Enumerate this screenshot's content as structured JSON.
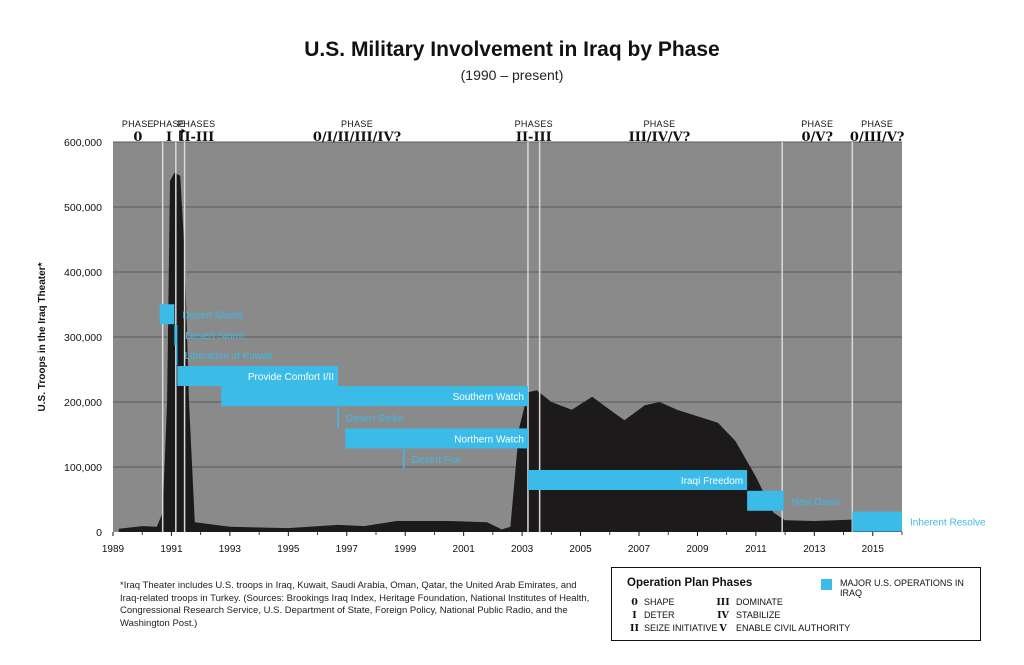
{
  "title": "U.S. Military Involvement in Iraq by Phase",
  "subtitle": "(1990 – present)",
  "colors": {
    "background": "#8a8a8a",
    "area": "#1c1a1a",
    "operation": "#3bbbe8",
    "divider": "#d9d9d9"
  },
  "chart_data": {
    "type": "area",
    "title": "U.S. Military Involvement in Iraq by Phase",
    "ylabel": "U.S. Troops in the Iraq Theater*",
    "xlabel": "",
    "xlim": [
      1989,
      2016
    ],
    "ylim": [
      0,
      600000
    ],
    "x_ticks": [
      "1989",
      "1991",
      "1993",
      "1995",
      "1997",
      "1999",
      "2001",
      "2003",
      "2005",
      "2007",
      "2009",
      "2011",
      "2013",
      "2015"
    ],
    "y_ticks": [
      {
        "value": 0,
        "label": "0"
      },
      {
        "value": 100000,
        "label": "100,000"
      },
      {
        "value": 200000,
        "label": "200,000"
      },
      {
        "value": 300000,
        "label": "300,000"
      },
      {
        "value": 400000,
        "label": "400,000"
      },
      {
        "value": 500000,
        "label": "500,000"
      },
      {
        "value": 600000,
        "label": "600,000"
      }
    ],
    "troops": [
      [
        1989.2,
        5000
      ],
      [
        1990.0,
        9000
      ],
      [
        1990.5,
        8000
      ],
      [
        1990.7,
        30000
      ],
      [
        1990.85,
        200000
      ],
      [
        1990.95,
        540000
      ],
      [
        1991.1,
        553000
      ],
      [
        1991.3,
        548000
      ],
      [
        1991.45,
        430000
      ],
      [
        1991.6,
        200000
      ],
      [
        1991.8,
        15000
      ],
      [
        1993.0,
        8000
      ],
      [
        1995.0,
        6000
      ],
      [
        1996.7,
        11000
      ],
      [
        1997.6,
        9000
      ],
      [
        1998.7,
        17000
      ],
      [
        2000.5,
        17000
      ],
      [
        2001.8,
        15000
      ],
      [
        2002.3,
        4000
      ],
      [
        2002.6,
        8000
      ],
      [
        2002.9,
        160000
      ],
      [
        2003.2,
        215000
      ],
      [
        2003.5,
        218000
      ],
      [
        2004.0,
        200000
      ],
      [
        2004.7,
        188000
      ],
      [
        2005.4,
        208000
      ],
      [
        2006.0,
        188000
      ],
      [
        2006.5,
        172000
      ],
      [
        2007.2,
        195000
      ],
      [
        2007.7,
        200000
      ],
      [
        2008.3,
        188000
      ],
      [
        2009.0,
        178000
      ],
      [
        2009.7,
        168000
      ],
      [
        2010.3,
        140000
      ],
      [
        2011.0,
        85000
      ],
      [
        2011.6,
        30000
      ],
      [
        2012.0,
        18000
      ],
      [
        2013.0,
        17000
      ],
      [
        2014.3,
        19000
      ],
      [
        2015.2,
        15000
      ],
      [
        2016.0,
        15000
      ]
    ],
    "operations": [
      {
        "name": "Desert Shield",
        "start": 1990.6,
        "end": 1991.1,
        "y": 335000,
        "label_side": "right",
        "thin": false
      },
      {
        "name": "Desert Storm",
        "start": 1991.1,
        "end": 1991.2,
        "y": 303000,
        "label_side": "right",
        "thin": false
      },
      {
        "name": "Liberation of Kuwait",
        "start": 1991.18,
        "end": 1991.23,
        "y": 272000,
        "label_side": "right",
        "thin": true
      },
      {
        "name": "Provide Comfort I/II",
        "start": 1991.2,
        "end": 1996.7,
        "y": 240000,
        "label_side": "inside",
        "thin": false
      },
      {
        "name": "Southern Watch",
        "start": 1992.7,
        "end": 2003.2,
        "y": 209000,
        "label_side": "inside",
        "thin": false
      },
      {
        "name": "Desert Strike",
        "start": 1996.7,
        "end": 1996.75,
        "y": 176000,
        "label_side": "right",
        "thin": true
      },
      {
        "name": "Northern Watch",
        "start": 1996.95,
        "end": 2003.2,
        "y": 144000,
        "label_side": "inside",
        "thin": false
      },
      {
        "name": "Desert Fox",
        "start": 1998.95,
        "end": 1999.0,
        "y": 112000,
        "label_side": "right",
        "thin": true
      },
      {
        "name": "Iraqi Freedom",
        "start": 2003.2,
        "end": 2010.7,
        "y": 80000,
        "label_side": "inside",
        "thin": false
      },
      {
        "name": "New Dawn",
        "start": 2010.7,
        "end": 2011.95,
        "y": 48000,
        "label_side": "right",
        "thin": false
      },
      {
        "name": "Inherent Resolve",
        "start": 2014.3,
        "end": 2016.0,
        "y": 16000,
        "label_side": "right",
        "thin": false
      }
    ],
    "phase_dividers": [
      1990.7,
      1991.15,
      1991.45,
      2003.2,
      2003.6,
      2011.9,
      2014.3
    ],
    "phases": [
      {
        "word": "PHASE",
        "code": "0",
        "at": 1989.85
      },
      {
        "word": "PHASE",
        "code": "I",
        "at": 1990.92
      },
      {
        "word": "PHASES",
        "code": "II-III",
        "at": 1991.85
      },
      {
        "word": "PHASE",
        "code": "0/I/II/III/IV?",
        "at": 1997.35
      },
      {
        "word": "PHASES",
        "code": "II-III",
        "at": 2003.4
      },
      {
        "word": "PHASE",
        "code": "III/IV/V?",
        "at": 2007.7
      },
      {
        "word": "PHASE",
        "code": "0/V?",
        "at": 2013.1
      },
      {
        "word": "PHASE",
        "code": "0/III/V?",
        "at": 2015.15
      }
    ]
  },
  "footnote": "*Iraq Theater includes U.S. troops in Iraq, Kuwait, Saudi Arabia, Oman, Qatar, the United Arab Emirates, and Iraq-related troops in Turkey. (Sources: Brookings Iraq Index, Heritage Foundation, National Institutes of Health, Congressional Research Service, U.S. Department of State, Foreign Policy, National Public Radio, and the Washington Post.)",
  "legend": {
    "title": "Operation Plan Phases",
    "major_ops": "MAJOR U.S. OPERATIONS IN IRAQ",
    "phases": [
      {
        "code": "0",
        "label": "SHAPE"
      },
      {
        "code": "I",
        "label": "DETER"
      },
      {
        "code": "II",
        "label": "SEIZE INITIATIVE"
      },
      {
        "code": "III",
        "label": "DOMINATE"
      },
      {
        "code": "IV",
        "label": "STABILIZE"
      },
      {
        "code": "V",
        "label": "ENABLE CIVIL AUTHORITY"
      }
    ]
  }
}
